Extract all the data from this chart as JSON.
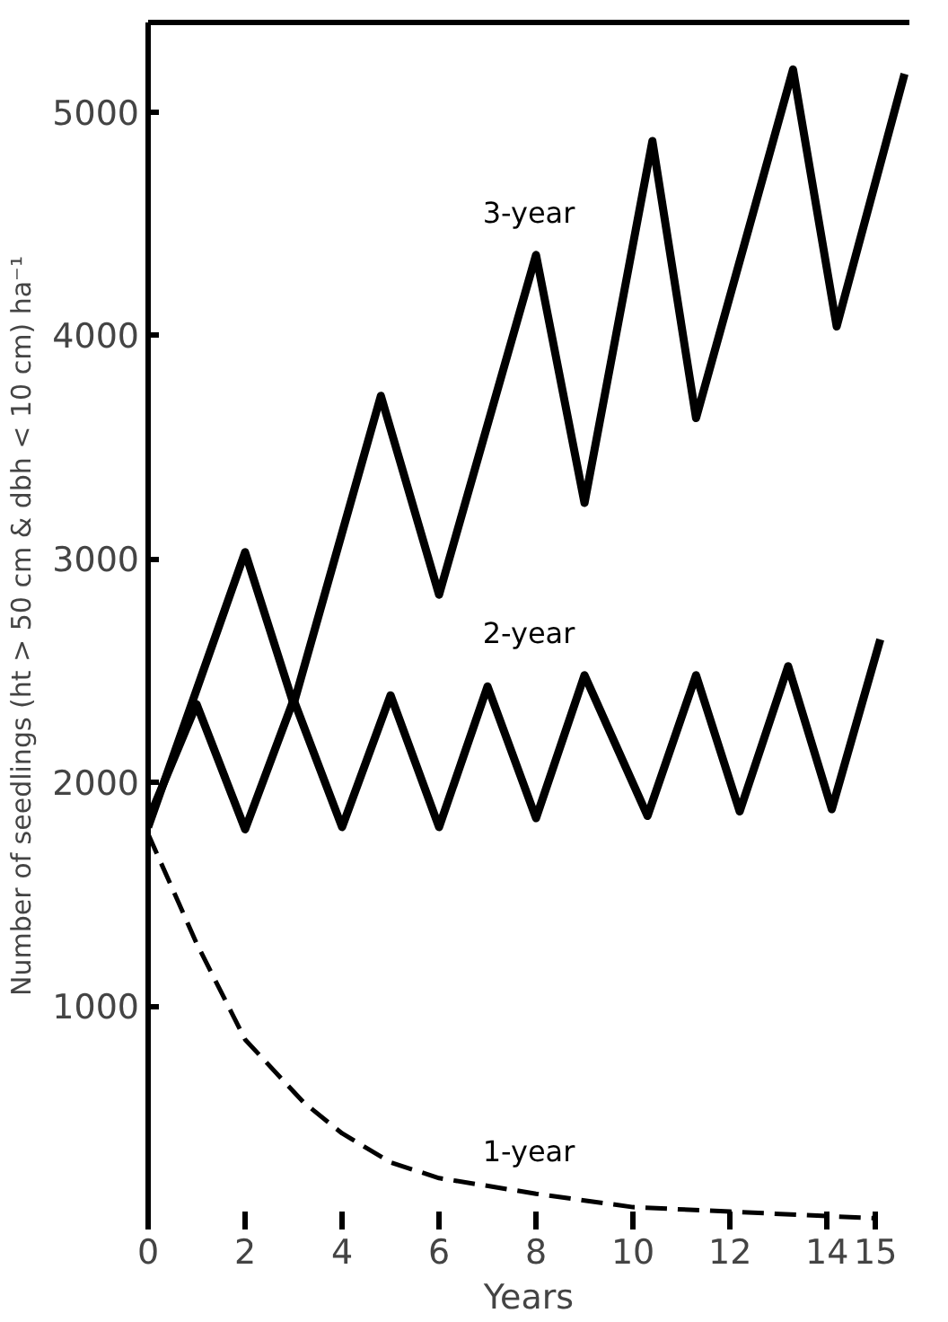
{
  "chart_data": {
    "type": "line",
    "xlabel": "Years",
    "ylabel": "Number of seedlings (ht > 50 cm & dbh < 10 cm) ha⁻¹",
    "xlim": [
      0,
      15.7
    ],
    "ylim": [
      0,
      5400
    ],
    "xticks": [
      0,
      2,
      4,
      6,
      8,
      10,
      12,
      14,
      15
    ],
    "yticks": [
      1000,
      2000,
      3000,
      4000,
      5000
    ],
    "grid": false,
    "marker": "none",
    "series": [
      {
        "name": "3-year",
        "color": "#000000",
        "line_style": "solid",
        "x": [
          0,
          2,
          3,
          4.8,
          6,
          8,
          9,
          10.4,
          11.3,
          13.3,
          14.2,
          15.6
        ],
        "values": [
          1800,
          3030,
          2350,
          3730,
          2840,
          4360,
          3250,
          4870,
          3630,
          5190,
          4040,
          5170
        ]
      },
      {
        "name": "2-year",
        "color": "#000000",
        "line_style": "solid",
        "x": [
          0,
          1,
          2,
          3,
          4,
          5,
          6,
          7,
          8,
          9,
          10.3,
          11.3,
          12.2,
          13.2,
          14.1,
          15.1
        ],
        "values": [
          1830,
          2350,
          1790,
          2370,
          1800,
          2390,
          1800,
          2430,
          1840,
          2480,
          1850,
          2480,
          1870,
          2520,
          1880,
          2640
        ]
      },
      {
        "name": "1-year",
        "color": "#000000",
        "line_style": "dashed",
        "x": [
          0,
          1,
          2,
          3.2,
          4,
          5,
          6,
          8,
          10,
          12,
          14,
          15
        ],
        "values": [
          1770,
          1280,
          850,
          570,
          430,
          300,
          230,
          160,
          100,
          80,
          60,
          50
        ]
      }
    ]
  }
}
